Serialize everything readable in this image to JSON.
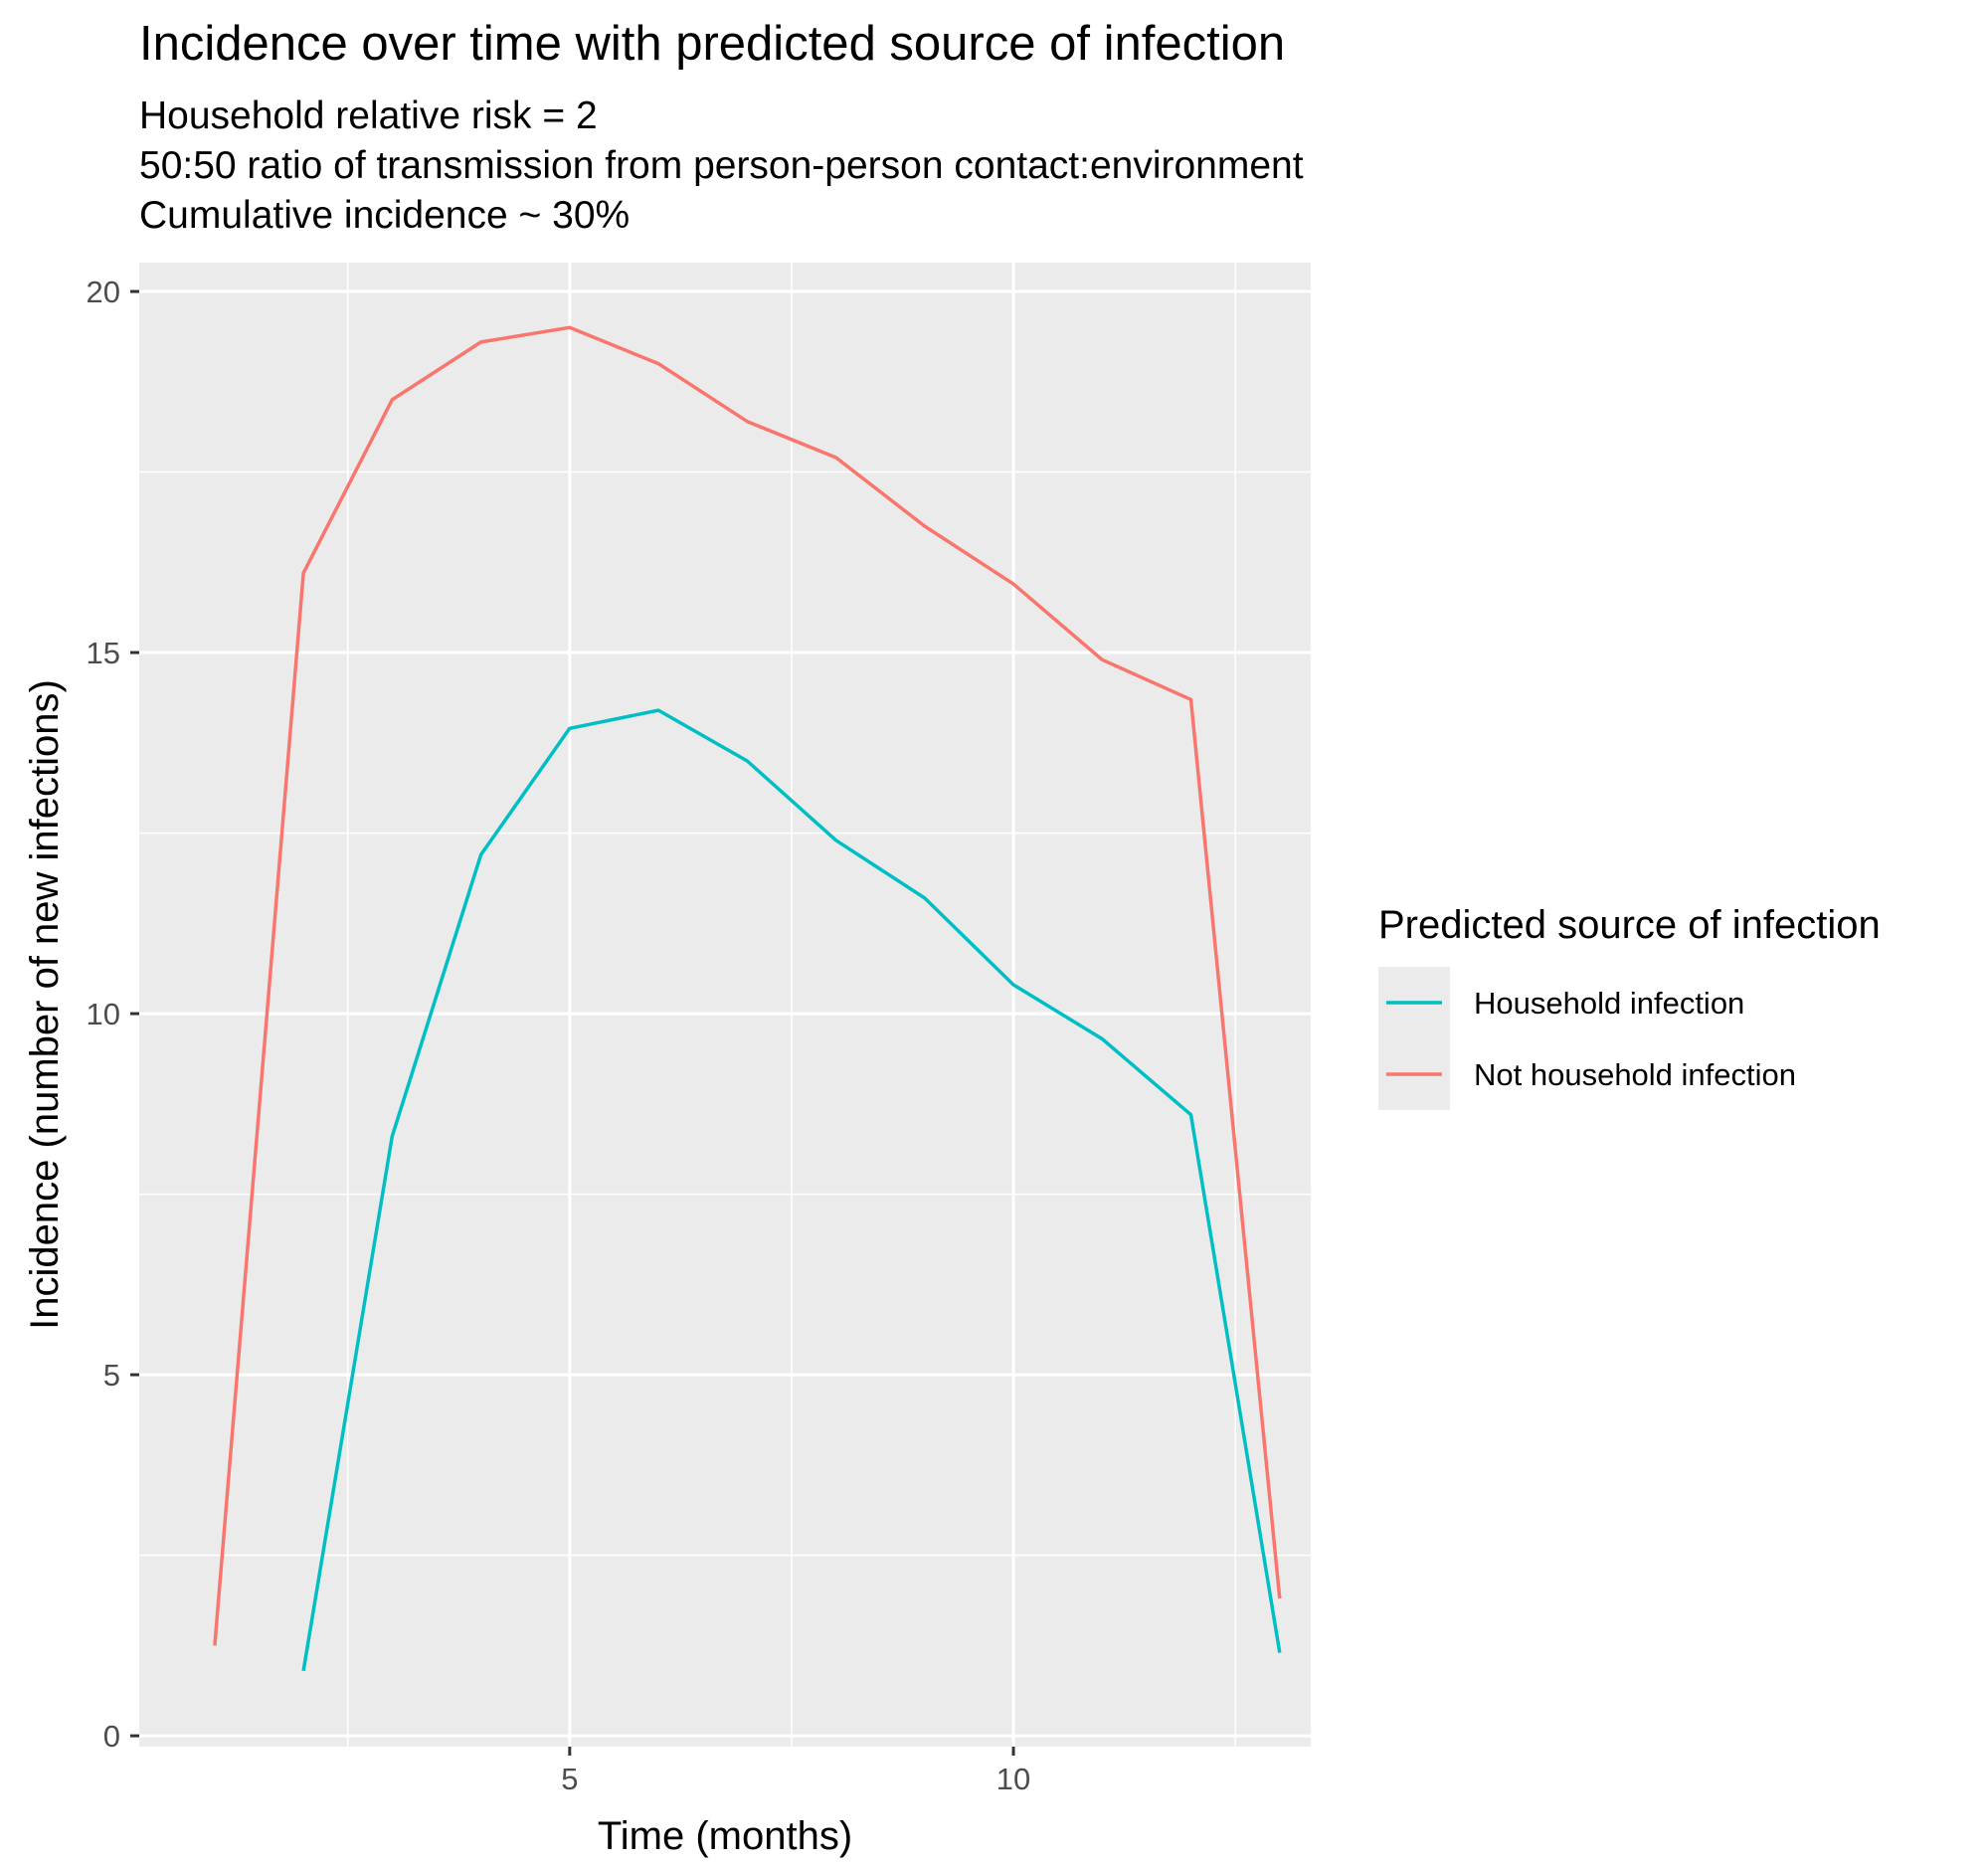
{
  "chart_data": {
    "type": "line",
    "title": "Incidence over time with predicted source of infection",
    "subtitle": [
      "Household relative risk = 2",
      "50:50 ratio of transmission from person-person contact:environment",
      "Cumulative incidence ~ 30%"
    ],
    "xlabel": "Time (months)",
    "ylabel": "Incidence (number of new infections)",
    "xlim": [
      0.15,
      13.35
    ],
    "ylim": [
      -0.15,
      20.4
    ],
    "x_ticks": [
      5,
      10
    ],
    "y_ticks": [
      0,
      5,
      10,
      15,
      20
    ],
    "grid": true,
    "legend": {
      "title": "Predicted source of infection",
      "position": "right"
    },
    "series": [
      {
        "name": "Household infection",
        "color": "#00BFC4",
        "x": [
          2,
          3,
          4,
          5,
          6,
          7,
          8,
          9,
          10,
          11,
          12,
          13
        ],
        "values": [
          0.9,
          8.3,
          12.2,
          13.95,
          14.2,
          13.5,
          12.4,
          11.6,
          10.4,
          9.65,
          8.6,
          1.15
        ]
      },
      {
        "name": "Not household infection",
        "color": "#F8766D",
        "x": [
          1,
          2,
          3,
          4,
          5,
          6,
          7,
          8,
          9,
          10,
          11,
          12,
          13
        ],
        "values": [
          1.25,
          16.1,
          18.5,
          19.3,
          19.5,
          19.0,
          18.2,
          17.7,
          16.75,
          15.95,
          14.9,
          14.35,
          1.9
        ]
      }
    ]
  }
}
